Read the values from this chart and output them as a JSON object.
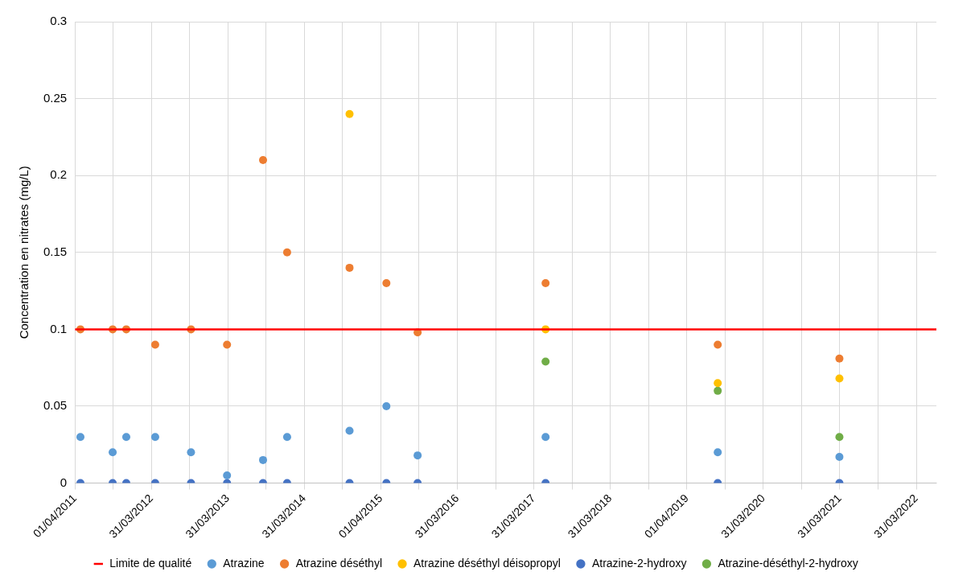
{
  "chart_data": {
    "type": "scatter",
    "ylabel": "Concentration en nitrates (mg/L)",
    "xlim": [
      "2011-04-01",
      "2022-07-05"
    ],
    "xticks": [
      {
        "value": "2011-04-01",
        "label": "01/04/2011"
      },
      {
        "value": "2011-09-30",
        "label": null
      },
      {
        "value": "2012-03-31",
        "label": "31/03/2012"
      },
      {
        "value": "2012-09-30",
        "label": null
      },
      {
        "value": "2013-03-31",
        "label": "31/03/2013"
      },
      {
        "value": "2013-09-30",
        "label": null
      },
      {
        "value": "2014-03-31",
        "label": "31/03/2014"
      },
      {
        "value": "2014-09-30",
        "label": null
      },
      {
        "value": "2015-04-01",
        "label": "01/04/2015"
      },
      {
        "value": "2015-09-30",
        "label": null
      },
      {
        "value": "2016-03-31",
        "label": "31/03/2016"
      },
      {
        "value": "2016-09-30",
        "label": null
      },
      {
        "value": "2017-03-31",
        "label": "31/03/2017"
      },
      {
        "value": "2017-09-30",
        "label": null
      },
      {
        "value": "2018-03-31",
        "label": "31/03/2018"
      },
      {
        "value": "2018-09-30",
        "label": null
      },
      {
        "value": "2019-04-01",
        "label": "01/04/2019"
      },
      {
        "value": "2019-09-30",
        "label": null
      },
      {
        "value": "2020-03-31",
        "label": "31/03/2020"
      },
      {
        "value": "2020-09-30",
        "label": null
      },
      {
        "value": "2021-03-31",
        "label": "31/03/2021"
      },
      {
        "value": "2021-09-30",
        "label": null
      },
      {
        "value": "2022-03-31",
        "label": "31/03/2022"
      }
    ],
    "ylim": [
      0,
      0.3
    ],
    "yticks": [
      0,
      0.05,
      0.1,
      0.15,
      0.2,
      0.25,
      0.3
    ],
    "grid": true,
    "legend": "bottom",
    "marker": "circle",
    "ref_lines": [
      {
        "axis": "y",
        "value": 0.1,
        "label": "Limite de qualité",
        "color": "#ff0000"
      }
    ],
    "series": [
      {
        "name": "Atrazine",
        "color": "#5b9bd5",
        "x": [
          "2011-04-27",
          "2011-09-28",
          "2011-12-02",
          "2012-04-18",
          "2012-10-06",
          "2013-03-27",
          "2013-09-15",
          "2014-01-08",
          "2014-11-02",
          "2015-04-27",
          "2015-09-23",
          "2017-05-26",
          "2019-08-26",
          "2021-03-29"
        ],
        "values": [
          0.03,
          0.02,
          0.03,
          0.03,
          0.02,
          0.005,
          0.015,
          0.03,
          0.034,
          0.05,
          0.018,
          0.03,
          0.02,
          0.017
        ]
      },
      {
        "name": "Atrazine déséthyl",
        "color": "#ed7d31",
        "x": [
          "2011-04-27",
          "2011-09-28",
          "2011-12-02",
          "2012-04-18",
          "2012-10-06",
          "2013-03-27",
          "2013-09-15",
          "2014-01-08",
          "2014-11-02",
          "2015-04-27",
          "2015-09-23",
          "2017-05-26",
          "2019-08-26",
          "2021-03-29"
        ],
        "values": [
          0.1,
          0.1,
          0.1,
          0.09,
          0.1,
          0.09,
          0.21,
          0.15,
          0.14,
          0.13,
          0.098,
          0.13,
          0.09,
          0.081
        ]
      },
      {
        "name": "Atrazine déséthyl déisopropyl",
        "color": "#ffc000",
        "x": [
          "2014-11-02",
          "2017-05-26",
          "2019-08-26",
          "2021-03-29"
        ],
        "values": [
          0.24,
          0.1,
          0.065,
          0.068
        ]
      },
      {
        "name": "Atrazine-2-hydroxy",
        "color": "#4472c4",
        "x": [
          "2011-04-27",
          "2011-09-28",
          "2011-12-02",
          "2012-04-18",
          "2012-10-06",
          "2013-03-27",
          "2013-09-15",
          "2014-01-08",
          "2014-11-02",
          "2015-04-27",
          "2015-09-23",
          "2017-05-26",
          "2019-08-26",
          "2021-03-29"
        ],
        "values": [
          0,
          0,
          0,
          0,
          0,
          0,
          0,
          0,
          0,
          0,
          0,
          0,
          0,
          0
        ]
      },
      {
        "name": "Atrazine-déséthyl-2-hydroxy",
        "color": "#70ad47",
        "x": [
          "2017-05-26",
          "2019-08-26",
          "2021-03-29"
        ],
        "values": [
          0.079,
          0.06,
          0.03
        ]
      }
    ]
  }
}
